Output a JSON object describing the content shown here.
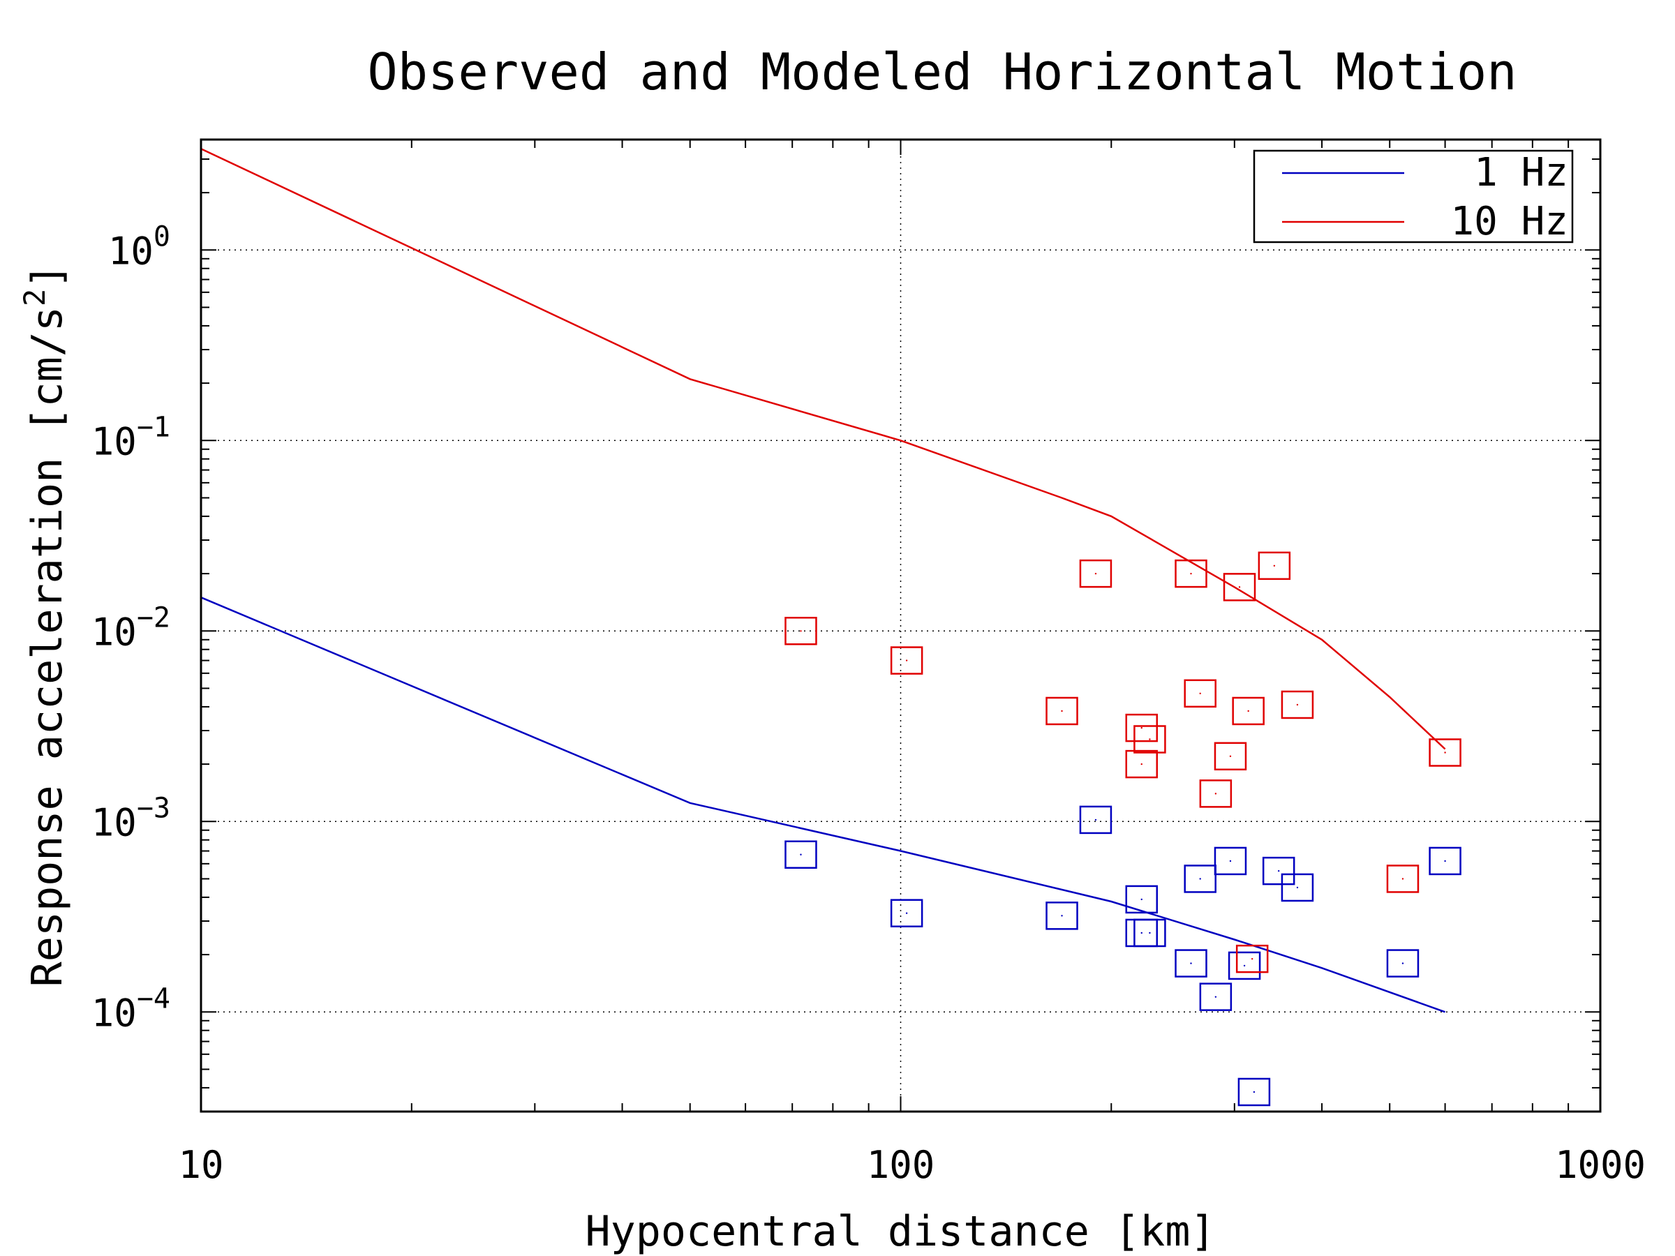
{
  "chart_data": {
    "type": "scatter",
    "title": "Observed and Modeled Horizontal Motion",
    "xlabel": "Hypocentral distance [km]",
    "ylabel_main": "Response acceleration [cm/s",
    "ylabel_sup": "2",
    "ylabel_end": "]",
    "xscale": "log",
    "yscale": "log",
    "xlim": [
      10,
      1000
    ],
    "ylim": [
      3e-05,
      3.8
    ],
    "grid": true,
    "legend_position": "top-right",
    "x_ticks": [
      {
        "value": 10,
        "label": "10"
      },
      {
        "value": 100,
        "label": "100"
      },
      {
        "value": 1000,
        "label": "1000"
      }
    ],
    "y_ticks": [
      {
        "value": 1,
        "base": "10",
        "exp": "0"
      },
      {
        "value": 0.1,
        "base": "10",
        "exp": "−1"
      },
      {
        "value": 0.01,
        "base": "10",
        "exp": "−2"
      },
      {
        "value": 0.001,
        "base": "10",
        "exp": "−3"
      },
      {
        "value": 0.0001,
        "base": "10",
        "exp": "−4"
      }
    ],
    "series": [
      {
        "name": "1 Hz",
        "color": "#0000c0",
        "line": {
          "x": [
            10,
            50,
            100,
            200,
            300,
            400,
            600
          ],
          "y": [
            0.015,
            0.00125,
            0.0007,
            0.00038,
            0.00024,
            0.00017,
            0.0001
          ]
        },
        "points": {
          "x": [
            72,
            102,
            170,
            190,
            221,
            221,
            227,
            260,
            268,
            282,
            296,
            310,
            320,
            347,
            369,
            522,
            600
          ],
          "y": [
            0.00067,
            0.00033,
            0.00032,
            0.00102,
            0.00039,
            0.00026,
            0.00026,
            0.00018,
            0.0005,
            0.00012,
            0.00062,
            0.000175,
            3.8e-05,
            0.00055,
            0.00045,
            0.00018,
            0.00062
          ]
        }
      },
      {
        "name": "10 Hz",
        "color": "#e00000",
        "line": {
          "x": [
            10,
            50,
            100,
            170,
            200,
            300,
            400,
            500,
            600
          ],
          "y": [
            3.4,
            0.21,
            0.1,
            0.05,
            0.04,
            0.017,
            0.009,
            0.0045,
            0.0024
          ]
        },
        "points": {
          "x": [
            72,
            102,
            170,
            190,
            221,
            221,
            227,
            260,
            268,
            282,
            296,
            305,
            314,
            318,
            342,
            369,
            522,
            600
          ],
          "y": [
            0.01,
            0.007,
            0.0038,
            0.02,
            0.0031,
            0.002,
            0.0027,
            0.02,
            0.0047,
            0.0014,
            0.0022,
            0.017,
            0.0038,
            0.00019,
            0.022,
            0.0041,
            0.0005,
            0.0023
          ]
        }
      }
    ]
  }
}
